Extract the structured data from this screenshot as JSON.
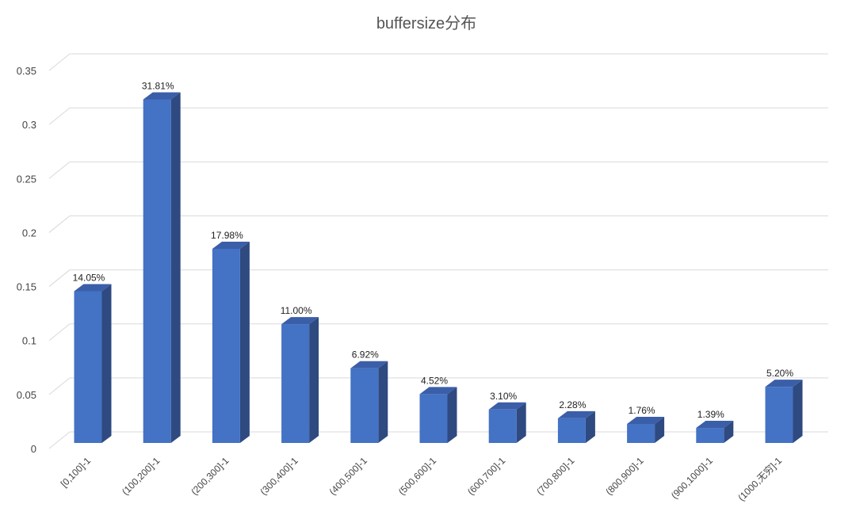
{
  "chart_data": {
    "type": "bar",
    "title": "buffersize分布",
    "xlabel": "",
    "ylabel": "",
    "ylim": [
      0,
      0.35
    ],
    "yticks": [
      "0",
      "0.05",
      "0.1",
      "0.15",
      "0.2",
      "0.25",
      "0.3",
      "0.35"
    ],
    "ytick_values": [
      0,
      0.05,
      0.1,
      0.15,
      0.2,
      0.25,
      0.3,
      0.35
    ],
    "grid": true,
    "bar_style": "3d",
    "color": "#4472C4",
    "categories": [
      "[0,100]-1",
      "(100,200]-1",
      "(200,300]-1",
      "(300,400]-1",
      "(400,500]-1",
      "(500,600]-1",
      "(600,700]-1",
      "(700,800]-1",
      "(800,900]-1",
      "(900,1000]-1",
      "(1000,无穷]-1"
    ],
    "values": [
      0.1405,
      0.3181,
      0.1798,
      0.11,
      0.0692,
      0.0452,
      0.031,
      0.0228,
      0.0176,
      0.0139,
      0.052
    ],
    "data_labels": [
      "14.05%",
      "31.81%",
      "17.98%",
      "11.00%",
      "6.92%",
      "4.52%",
      "3.10%",
      "2.28%",
      "1.76%",
      "1.39%",
      "5.20%"
    ]
  }
}
